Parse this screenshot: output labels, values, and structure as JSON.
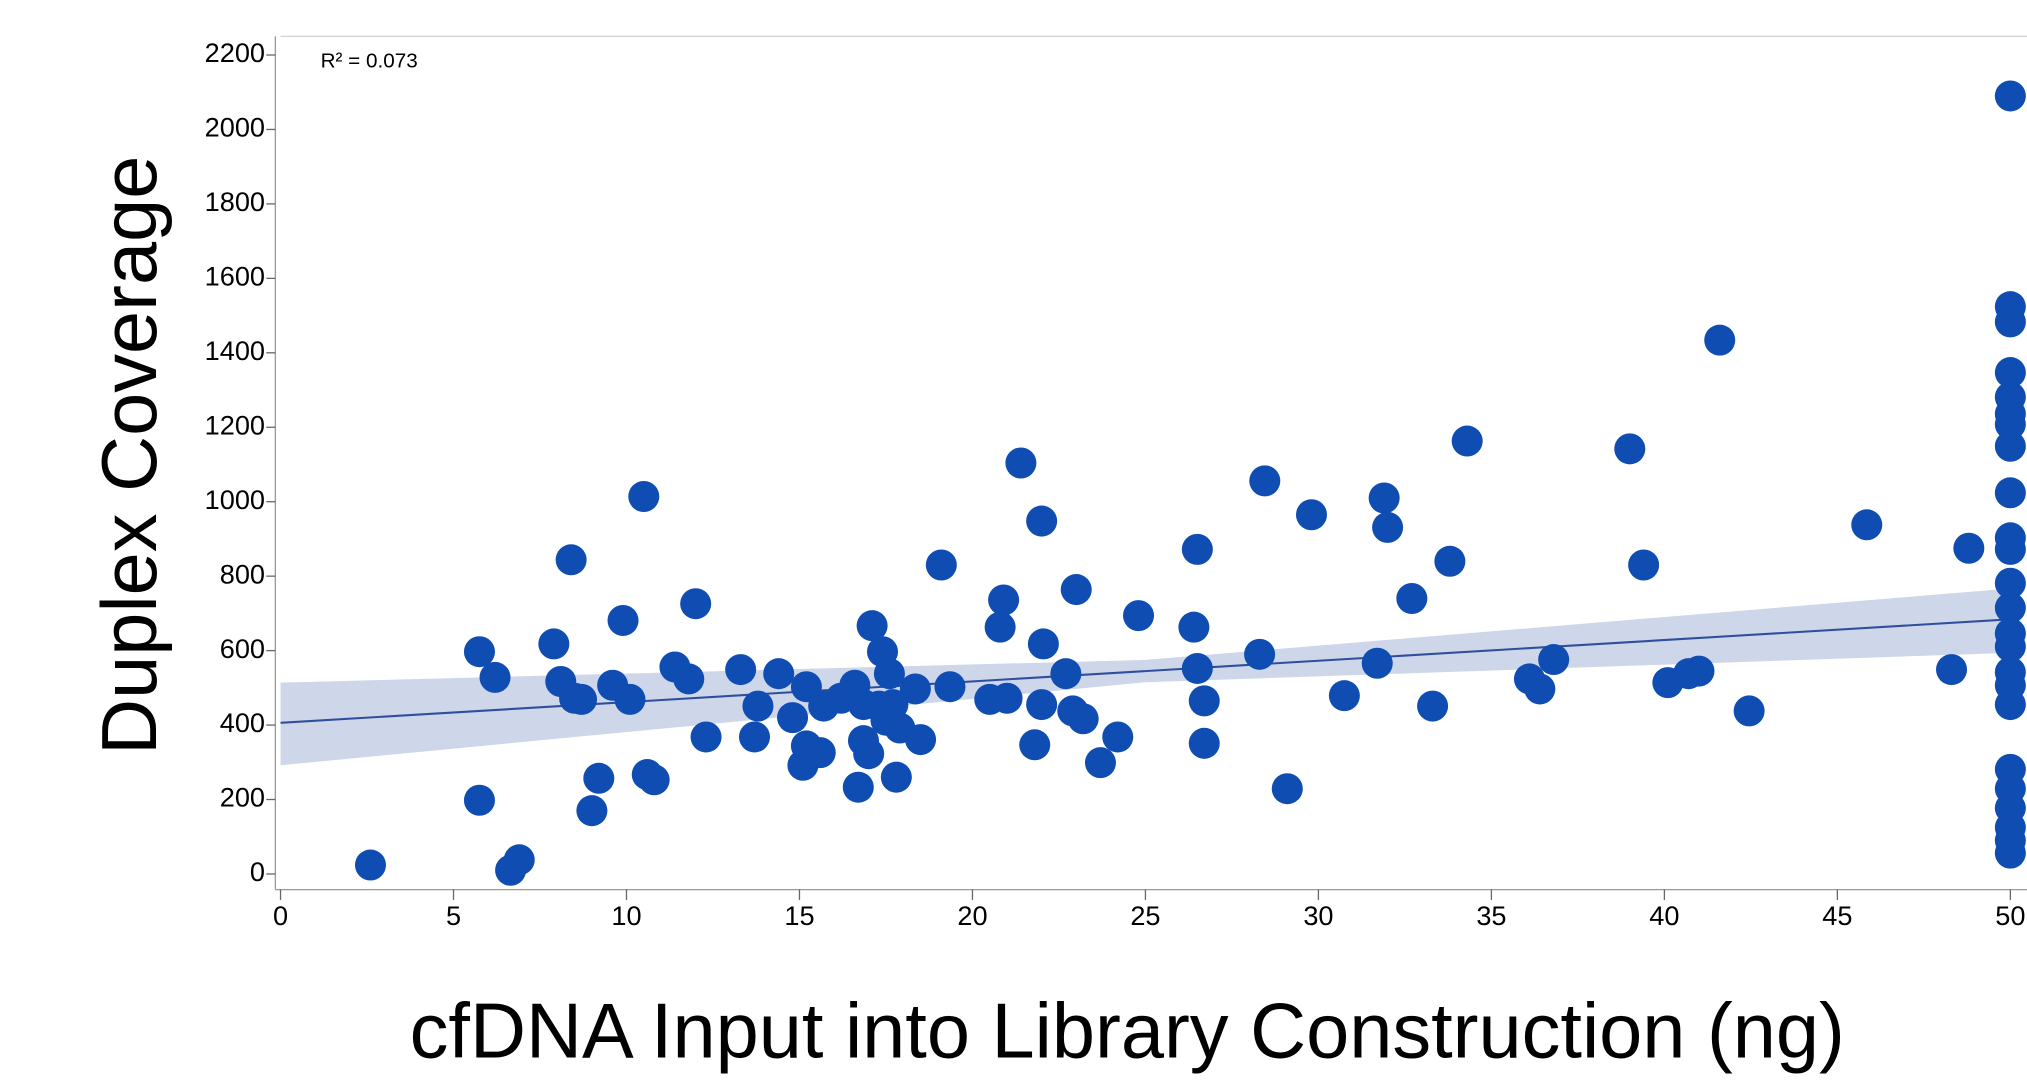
{
  "chart_data": {
    "type": "scatter",
    "x_label": "cfDNA Input into Library Construction (ng)",
    "y_label": "Duplex Coverage",
    "annotation": "R² = 0.073",
    "color": "#0f4db3",
    "xlim": [
      0,
      50.5
    ],
    "ylim": [
      -42,
      2250
    ],
    "xticks": [
      0,
      5,
      10,
      15,
      20,
      25,
      30,
      35,
      40,
      45,
      50
    ],
    "yticks": [
      0,
      200,
      400,
      600,
      800,
      1000,
      1200,
      1400,
      1600,
      1800,
      2000,
      2200
    ],
    "x": [
      2.6,
      5.75,
      6.2,
      5.75,
      6.65,
      6.9,
      7.9,
      8.1,
      8.4,
      8.5,
      8.7,
      9.0,
      9.2,
      9.6,
      9.9,
      10.1,
      10.5,
      10.6,
      10.8,
      11.4,
      11.8,
      12.0,
      12.3,
      13.3,
      13.7,
      13.8,
      14.4,
      14.8,
      15.2,
      15.2,
      15.1,
      15.6,
      15.7,
      16.2,
      16.6,
      16.7,
      16.85,
      17.0,
      17.1,
      16.85,
      17.3,
      17.4,
      17.6,
      17.7,
      17.5,
      17.9,
      17.8,
      18.35,
      18.5,
      19.1,
      19.35,
      20.5,
      20.8,
      20.9,
      21.0,
      21.4,
      21.8,
      22.0,
      22.05,
      22.0,
      22.7,
      22.9,
      23.0,
      23.2,
      23.7,
      24.2,
      24.8,
      26.5,
      26.4,
      26.5,
      26.7,
      26.7,
      28.45,
      28.3,
      29.1,
      29.8,
      30.75,
      31.7,
      31.9,
      32.0,
      32.7,
      33.3,
      33.8,
      34.3,
      36.1,
      36.4,
      36.8,
      39.0,
      39.4,
      40.1,
      40.7,
      41.0,
      41.6,
      42.45,
      45.85,
      48.3,
      48.8,
      50,
      50,
      50,
      50,
      50,
      50,
      50,
      50,
      50,
      50,
      50,
      50,
      50,
      50,
      50,
      50,
      50,
      50,
      50,
      50,
      50,
      50,
      50,
      50
    ],
    "values": [
      24,
      597,
      528,
      198,
      10,
      38,
      618,
      517,
      844,
      472,
      469,
      170,
      257,
      507,
      681,
      469,
      1014,
      267,
      253,
      556,
      524,
      726,
      368,
      549,
      368,
      451,
      538,
      420,
      503,
      344,
      292,
      326,
      451,
      472,
      507,
      233,
      358,
      323,
      667,
      455,
      451,
      597,
      538,
      455,
      413,
      392,
      260,
      497,
      361,
      830,
      503,
      469,
      663,
      736,
      472,
      1104,
      347,
      948,
      618,
      455,
      538,
      438,
      764,
      417,
      299,
      368,
      694,
      872,
      663,
      552,
      465,
      351,
      1056,
      590,
      229,
      965,
      479,
      566,
      1010,
      931,
      740,
      451,
      840,
      1163,
      524,
      497,
      576,
      1142,
      830,
      514,
      538,
      545,
      1434,
      438,
      938,
      549,
      875,
      2090,
      1524,
      1483,
      1347,
      1281,
      1236,
      1208,
      1149,
      1024,
      903,
      872,
      781,
      715,
      646,
      611,
      542,
      507,
      455,
      281,
      229,
      177,
      125,
      90,
      56
    ],
    "fit": {
      "x": [
        0,
        50
      ],
      "y": [
        406,
        684
      ],
      "color": "#2f4f9e"
    },
    "band": {
      "x": [
        0,
        25,
        50
      ],
      "lower": [
        292,
        515,
        594
      ],
      "upper": [
        514,
        575,
        767
      ],
      "color": "#c5cfe6"
    }
  }
}
